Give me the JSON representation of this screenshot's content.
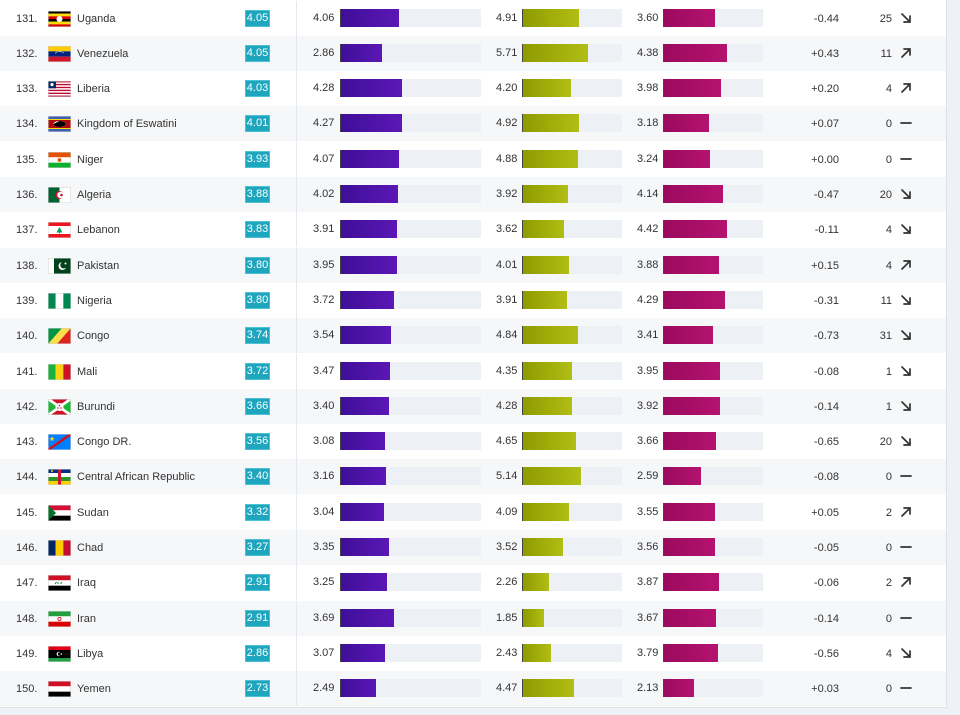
{
  "rows": [
    {
      "rank": "131.",
      "country": "Uganda",
      "flag": "uganda",
      "score": "4.05",
      "m1": "4.06",
      "m2": "4.91",
      "m3": "3.60",
      "change": "-0.44",
      "moves": "25",
      "trend": "down"
    },
    {
      "rank": "132.",
      "country": "Venezuela",
      "flag": "venezuela",
      "score": "4.05",
      "m1": "2.86",
      "m2": "5.71",
      "m3": "4.38",
      "change": "+0.43",
      "moves": "11",
      "trend": "up"
    },
    {
      "rank": "133.",
      "country": "Liberia",
      "flag": "liberia",
      "score": "4.03",
      "m1": "4.28",
      "m2": "4.20",
      "m3": "3.98",
      "change": "+0.20",
      "moves": "4",
      "trend": "up"
    },
    {
      "rank": "134.",
      "country": "Kingdom of Eswatini",
      "flag": "eswatini",
      "score": "4.01",
      "m1": "4.27",
      "m2": "4.92",
      "m3": "3.18",
      "change": "+0.07",
      "moves": "0",
      "trend": "flat"
    },
    {
      "rank": "135.",
      "country": "Niger",
      "flag": "niger",
      "score": "3.93",
      "m1": "4.07",
      "m2": "4.88",
      "m3": "3.24",
      "change": "+0.00",
      "moves": "0",
      "trend": "flat"
    },
    {
      "rank": "136.",
      "country": "Algeria",
      "flag": "algeria",
      "score": "3.88",
      "m1": "4.02",
      "m2": "3.92",
      "m3": "4.14",
      "change": "-0.47",
      "moves": "20",
      "trend": "down"
    },
    {
      "rank": "137.",
      "country": "Lebanon",
      "flag": "lebanon",
      "score": "3.83",
      "m1": "3.91",
      "m2": "3.62",
      "m3": "4.42",
      "change": "-0.11",
      "moves": "4",
      "trend": "down"
    },
    {
      "rank": "138.",
      "country": "Pakistan",
      "flag": "pakistan",
      "score": "3.80",
      "m1": "3.95",
      "m2": "4.01",
      "m3": "3.88",
      "change": "+0.15",
      "moves": "4",
      "trend": "up"
    },
    {
      "rank": "139.",
      "country": "Nigeria",
      "flag": "nigeria",
      "score": "3.80",
      "m1": "3.72",
      "m2": "3.91",
      "m3": "4.29",
      "change": "-0.31",
      "moves": "11",
      "trend": "down"
    },
    {
      "rank": "140.",
      "country": "Congo",
      "flag": "congo",
      "score": "3.74",
      "m1": "3.54",
      "m2": "4.84",
      "m3": "3.41",
      "change": "-0.73",
      "moves": "31",
      "trend": "down"
    },
    {
      "rank": "141.",
      "country": "Mali",
      "flag": "mali",
      "score": "3.72",
      "m1": "3.47",
      "m2": "4.35",
      "m3": "3.95",
      "change": "-0.08",
      "moves": "1",
      "trend": "down"
    },
    {
      "rank": "142.",
      "country": "Burundi",
      "flag": "burundi",
      "score": "3.66",
      "m1": "3.40",
      "m2": "4.28",
      "m3": "3.92",
      "change": "-0.14",
      "moves": "1",
      "trend": "down"
    },
    {
      "rank": "143.",
      "country": "Congo DR.",
      "flag": "congo-dr",
      "score": "3.56",
      "m1": "3.08",
      "m2": "4.65",
      "m3": "3.66",
      "change": "-0.65",
      "moves": "20",
      "trend": "down"
    },
    {
      "rank": "144.",
      "country": "Central African Republic",
      "flag": "car",
      "score": "3.40",
      "m1": "3.16",
      "m2": "5.14",
      "m3": "2.59",
      "change": "-0.08",
      "moves": "0",
      "trend": "flat"
    },
    {
      "rank": "145.",
      "country": "Sudan",
      "flag": "sudan",
      "score": "3.32",
      "m1": "3.04",
      "m2": "4.09",
      "m3": "3.55",
      "change": "+0.05",
      "moves": "2",
      "trend": "up"
    },
    {
      "rank": "146.",
      "country": "Chad",
      "flag": "chad",
      "score": "3.27",
      "m1": "3.35",
      "m2": "3.52",
      "m3": "3.56",
      "change": "-0.05",
      "moves": "0",
      "trend": "flat"
    },
    {
      "rank": "147.",
      "country": "Iraq",
      "flag": "iraq",
      "score": "2.91",
      "m1": "3.25",
      "m2": "2.26",
      "m3": "3.87",
      "change": "-0.06",
      "moves": "2",
      "trend": "up"
    },
    {
      "rank": "148.",
      "country": "Iran",
      "flag": "iran",
      "score": "2.91",
      "m1": "3.69",
      "m2": "1.85",
      "m3": "3.67",
      "change": "-0.14",
      "moves": "0",
      "trend": "flat"
    },
    {
      "rank": "149.",
      "country": "Libya",
      "flag": "libya",
      "score": "2.86",
      "m1": "3.07",
      "m2": "2.43",
      "m3": "3.79",
      "change": "-0.56",
      "moves": "4",
      "trend": "down"
    },
    {
      "rank": "150.",
      "country": "Yemen",
      "flag": "yemen",
      "score": "2.73",
      "m1": "2.49",
      "m2": "4.47",
      "m3": "2.13",
      "change": "+0.03",
      "moves": "0",
      "trend": "flat"
    }
  ],
  "bar_scale_max": {
    "m1": 9.9,
    "m2": 8.8,
    "m3": 7.0
  },
  "colors": {
    "badge": "#1da6be",
    "bar1": "#4a12a6",
    "bar2": "#9fac08",
    "bar3": "#a70e66"
  }
}
